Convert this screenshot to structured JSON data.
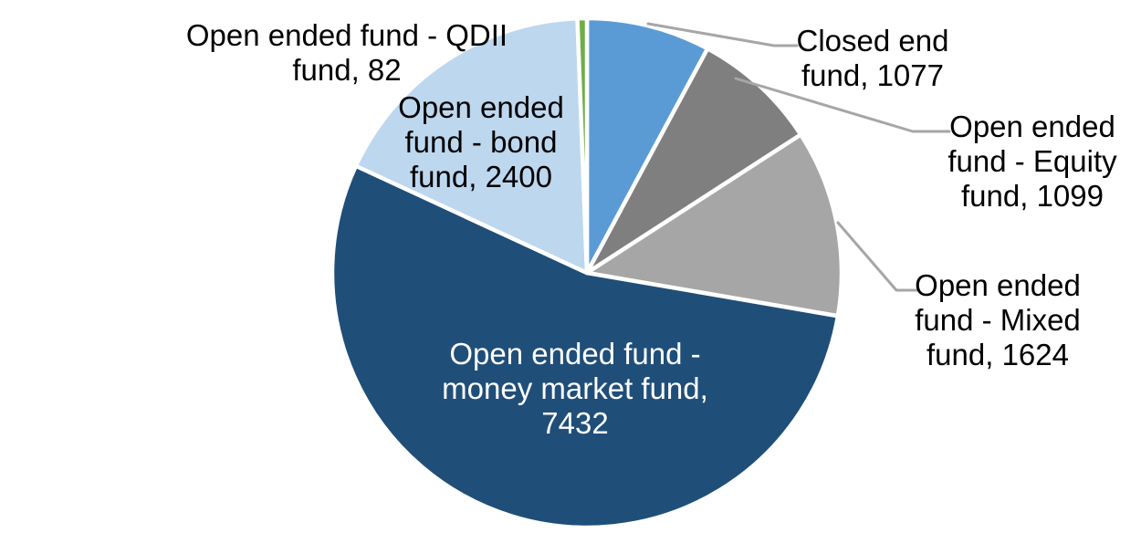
{
  "chart_data": {
    "type": "pie",
    "title": "",
    "legend": "none",
    "start_angle_deg": 0,
    "direction": "clockwise",
    "data_label_format": "category name, value",
    "leader_line_color": "#A6A6A6",
    "slice_border_color": "#FFFFFF",
    "background_color": "#FFFFFF",
    "categories": [
      "Closed end fund",
      "Open ended fund - Equity fund",
      "Open ended fund - Mixed fund",
      "Open ended fund - money market fund",
      "Open ended fund - bond fund",
      "Open ended fund - QDII fund"
    ],
    "values": [
      1077,
      1099,
      1624,
      7432,
      2400,
      82
    ],
    "slices": [
      {
        "label": "Closed end fund",
        "value": 1077,
        "color": "#5B9BD5",
        "label_color": "#000000",
        "label_text": "Closed end\nfund, 1077",
        "has_leader_line": true
      },
      {
        "label": "Open ended fund - Equity fund",
        "value": 1099,
        "color": "#7F7F7F",
        "label_color": "#000000",
        "label_text": "Open ended\nfund - Equity\nfund, 1099",
        "has_leader_line": true
      },
      {
        "label": "Open ended fund - Mixed fund",
        "value": 1624,
        "color": "#A6A6A6",
        "label_color": "#000000",
        "label_text": "Open ended\nfund - Mixed\nfund, 1624",
        "has_leader_line": true
      },
      {
        "label": "Open ended fund - money market fund",
        "value": 7432,
        "color": "#1F4E79",
        "label_color": "#FFFFFF",
        "label_text": "Open ended fund -\nmoney market fund,\n7432",
        "has_leader_line": false
      },
      {
        "label": "Open ended fund - bond fund",
        "value": 2400,
        "color": "#BDD7EE",
        "label_color": "#000000",
        "label_text": "Open ended\nfund - bond\nfund, 2400",
        "has_leader_line": false
      },
      {
        "label": "Open ended fund - QDII fund",
        "value": 82,
        "color": "#70AD47",
        "label_color": "#000000",
        "label_text": "Open ended fund - QDII\nfund, 82",
        "has_leader_line": false
      }
    ]
  }
}
